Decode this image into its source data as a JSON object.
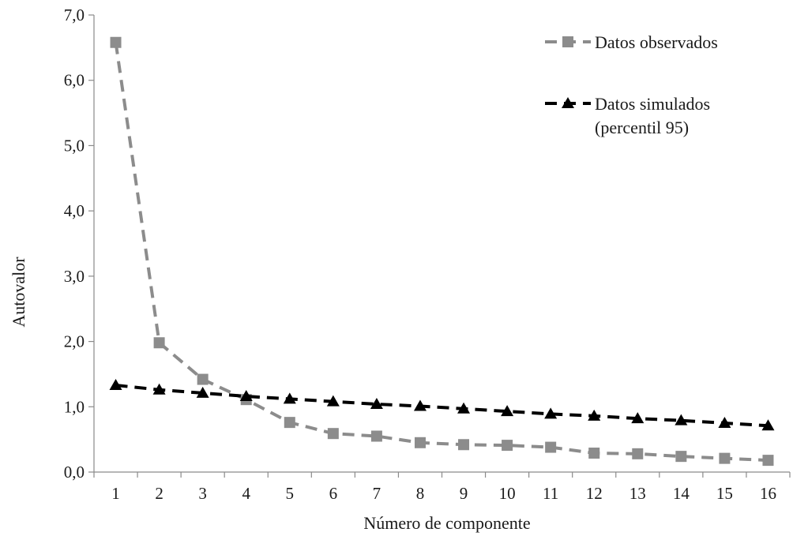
{
  "chart_data": {
    "type": "line",
    "title": "",
    "xlabel": "Número de componente",
    "ylabel": "Autovalor",
    "x": [
      1,
      2,
      3,
      4,
      5,
      6,
      7,
      8,
      9,
      10,
      11,
      12,
      13,
      14,
      15,
      16
    ],
    "x_tick_labels": [
      "1",
      "2",
      "3",
      "4",
      "5",
      "6",
      "7",
      "8",
      "9",
      "10",
      "11",
      "12",
      "13",
      "14",
      "15",
      "16"
    ],
    "ylim": [
      0,
      7
    ],
    "y_ticks": [
      0,
      1,
      2,
      3,
      4,
      5,
      6,
      7
    ],
    "y_tick_labels": [
      "0,0",
      "1,0",
      "2,0",
      "3,0",
      "4,0",
      "5,0",
      "6,0",
      "7,0"
    ],
    "grid": false,
    "legend_position": "top-right",
    "series": [
      {
        "name": "Datos observados",
        "values": [
          6.58,
          1.98,
          1.42,
          1.11,
          0.76,
          0.59,
          0.55,
          0.45,
          0.42,
          0.41,
          0.38,
          0.29,
          0.28,
          0.24,
          0.21,
          0.18
        ],
        "color": "#8c8c8c",
        "marker": "square",
        "line_style": "dashed"
      },
      {
        "name": "Datos simulados (percentil 95)",
        "legend_lines": [
          "Datos simulados",
          "(percentil 95)"
        ],
        "values": [
          1.33,
          1.26,
          1.21,
          1.16,
          1.12,
          1.08,
          1.04,
          1.01,
          0.97,
          0.93,
          0.89,
          0.86,
          0.82,
          0.79,
          0.75,
          0.71
        ],
        "color": "#000000",
        "marker": "triangle",
        "line_style": "dashed"
      }
    ]
  }
}
